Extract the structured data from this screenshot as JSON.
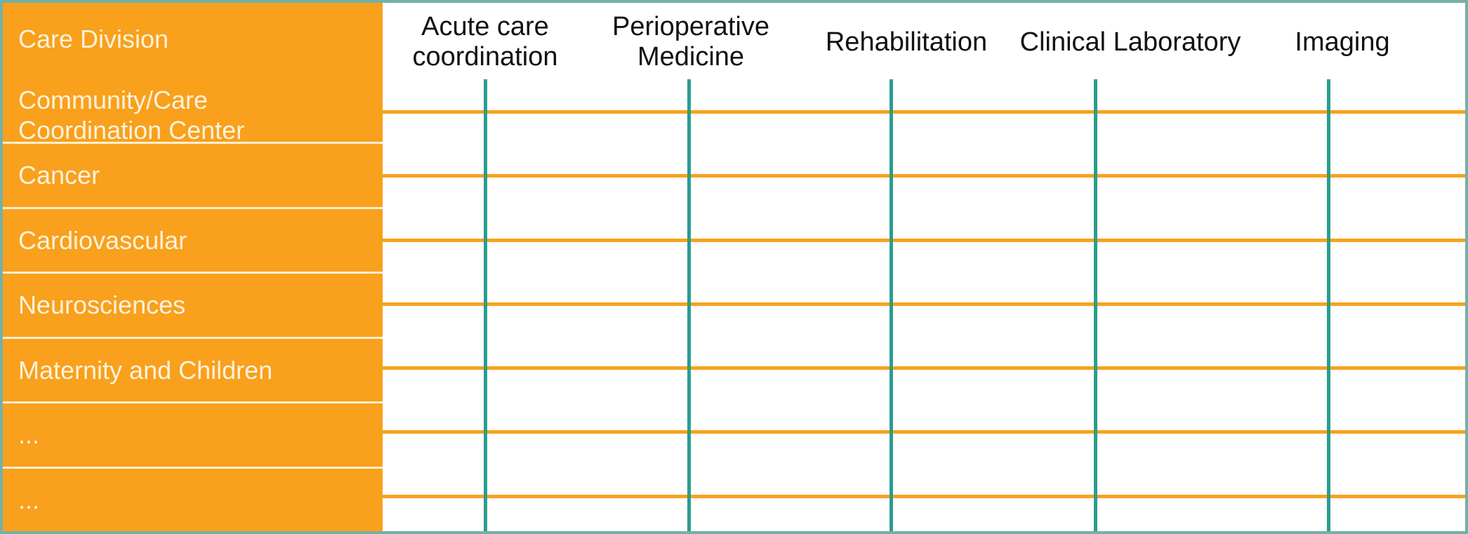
{
  "diagram": {
    "title_hint": "Care Division service matrix",
    "corner_label": "Care Division",
    "row_headers": [
      "Community/Care\nCoordination Center",
      "Cancer",
      "Cardiovascular",
      "Neurosciences",
      "Maternity and Children",
      "...",
      "..."
    ],
    "column_headers": [
      "Acute care\ncoordination",
      "Perioperative\nMedicine",
      "Rehabilitation",
      "Clinical Laboratory",
      "Imaging"
    ]
  },
  "colors": {
    "sidebar_orange": "#f9a01c",
    "grid_row_line_orange": "#f9a21d",
    "column_drop_line_teal": "#2d9c8f",
    "outer_frame_teal": "#73b0a8",
    "sidebar_separator_cream": "#fcefd2",
    "sidebar_text": "#fbf2dc",
    "column_header_text": "#111111",
    "grid_background": "#ffffff"
  }
}
